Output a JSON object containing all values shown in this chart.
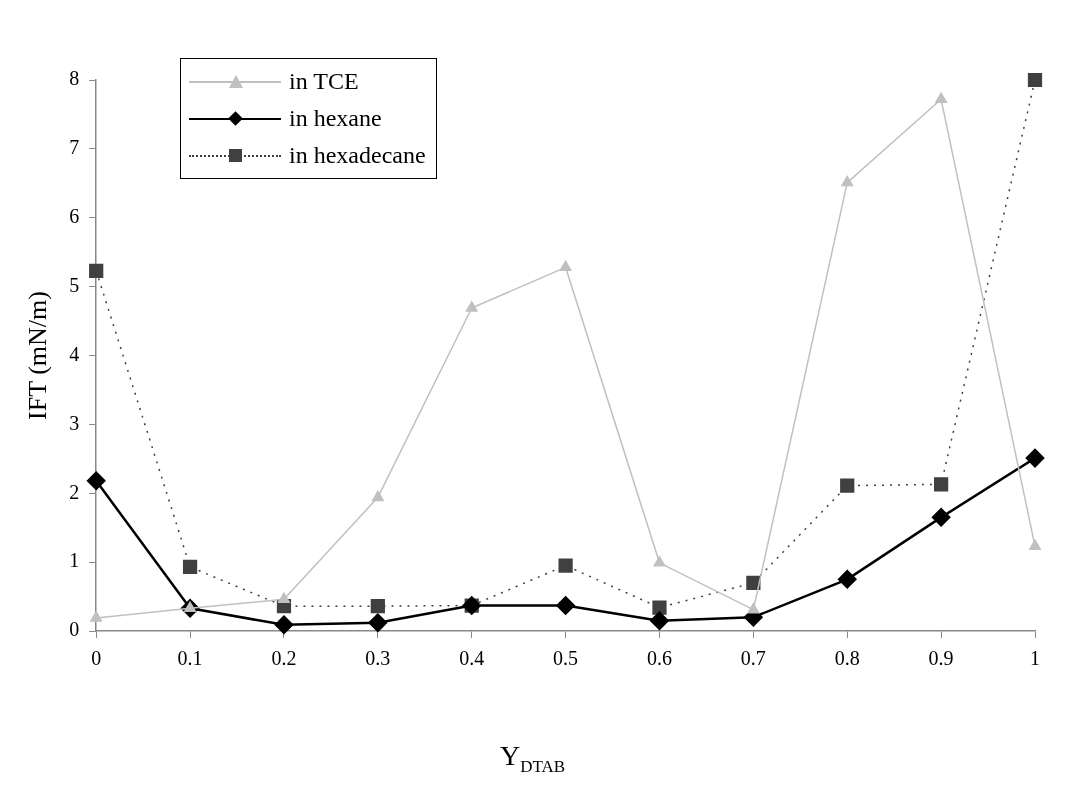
{
  "chart_data": {
    "type": "line",
    "xlabel": "Y$_{DTAB}$",
    "ylabel": "IFT (mN/m)",
    "x": [
      0,
      0.1,
      0.2,
      0.3,
      0.4,
      0.5,
      0.6,
      0.7,
      0.8,
      0.9,
      1
    ],
    "series": [
      {
        "name": "in TCE",
        "color": "#c0c0c0",
        "marker": "triangle",
        "line_style": "solid",
        "values": [
          0.19,
          0.33,
          0.46,
          1.94,
          4.69,
          5.28,
          0.99,
          0.31,
          6.51,
          7.72,
          1.23
        ]
      },
      {
        "name": "in hexane",
        "color": "#000000",
        "marker": "diamond",
        "line_style": "solid",
        "values": [
          2.18,
          0.33,
          0.09,
          0.12,
          0.37,
          0.37,
          0.15,
          0.2,
          0.75,
          1.65,
          2.51
        ]
      },
      {
        "name": "in hexadecane",
        "color": "#404040",
        "marker": "square",
        "line_style": "dotted",
        "values": [
          5.23,
          0.93,
          0.36,
          0.36,
          0.37,
          0.95,
          0.34,
          0.7,
          2.11,
          2.13,
          8
        ]
      }
    ],
    "xlim": [
      0,
      1
    ],
    "xticks": [
      0,
      0.1,
      0.2,
      0.3,
      0.4,
      0.5,
      0.6,
      0.7,
      0.8,
      0.9,
      1
    ],
    "ylim": [
      0,
      8
    ],
    "yticks": [
      0,
      1,
      2,
      3,
      4,
      5,
      6,
      7,
      8
    ],
    "grid": false,
    "legend": "top left"
  }
}
